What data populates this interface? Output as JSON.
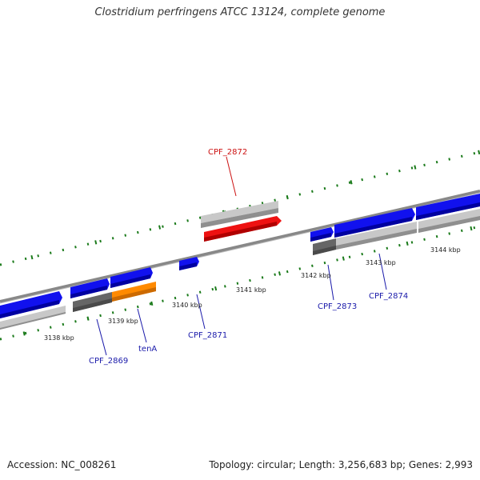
{
  "title": "Clostridium perfringens ATCC 13124, complete genome",
  "footer": {
    "accession": "Accession: NC_008261",
    "summary": "Topology: circular; Length: 3,256,683 bp; Genes: 2,993"
  },
  "colors": {
    "backbone": "#888888",
    "tick": "#1a7a1a",
    "plus_gene": "#1111ee",
    "minus_highlight": "#ee1111",
    "orange_gene": "#ff8a00",
    "gray_feature": "#c8c8c8",
    "dark_feature": "#666666",
    "label_blue": "#1a1aaa",
    "label_red": "#cc1111"
  },
  "scale_labels": [
    {
      "id": "3138",
      "text": "3138 kbp"
    },
    {
      "id": "3139",
      "text": "3139 kbp"
    },
    {
      "id": "3140",
      "text": "3140 kbp"
    },
    {
      "id": "3141",
      "text": "3141 kbp"
    },
    {
      "id": "3142",
      "text": "3142 kbp"
    },
    {
      "id": "3143",
      "text": "3143 kbp"
    },
    {
      "id": "3144",
      "text": "3144 kbp"
    }
  ],
  "gene_labels": [
    {
      "id": "cpf2869",
      "text": "CPF_2869",
      "color": "blue"
    },
    {
      "id": "tena",
      "text": "tenA",
      "color": "blue"
    },
    {
      "id": "cpf2871",
      "text": "CPF_2871",
      "color": "blue"
    },
    {
      "id": "cpf2872",
      "text": "CPF_2872",
      "color": "red"
    },
    {
      "id": "cpf2873",
      "text": "CPF_2873",
      "color": "blue"
    },
    {
      "id": "cpf2874",
      "text": "CPF_2874",
      "color": "blue"
    }
  ]
}
